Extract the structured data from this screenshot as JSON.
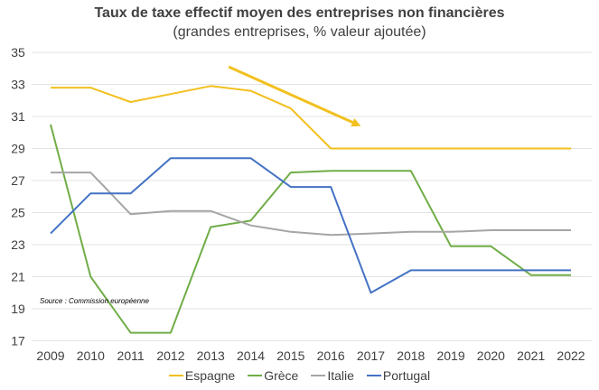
{
  "chart_data": {
    "type": "line",
    "title": "Taux de taxe effectif moyen des entreprises non financières",
    "subtitle": "(grandes entreprises, % valeur ajoutée)",
    "xlabel": "",
    "ylabel": "",
    "x": [
      "2009",
      "2010",
      "2011",
      "2012",
      "2013",
      "2014",
      "2015",
      "2016",
      "2017",
      "2018",
      "2019",
      "2020",
      "2021",
      "2022"
    ],
    "ylim": [
      17,
      35
    ],
    "yticks": [
      17,
      19,
      21,
      23,
      25,
      27,
      29,
      31,
      33,
      35
    ],
    "grid": true,
    "legend_position": "bottom",
    "series": [
      {
        "name": "Espagne",
        "color": "#F2C01E",
        "values": [
          32.8,
          32.8,
          31.9,
          32.4,
          32.9,
          32.6,
          31.5,
          29.0,
          29.0,
          29.0,
          29.0,
          29.0,
          29.0,
          29.0
        ]
      },
      {
        "name": "Grèce",
        "color": "#70AD47",
        "values": [
          30.5,
          21.0,
          17.5,
          17.5,
          24.1,
          24.5,
          27.5,
          27.6,
          27.6,
          27.6,
          22.9,
          22.9,
          21.1,
          21.1
        ]
      },
      {
        "name": "Italie",
        "color": "#A5A5A5",
        "values": [
          27.5,
          27.5,
          24.9,
          25.1,
          25.1,
          24.2,
          23.8,
          23.6,
          23.7,
          23.8,
          23.8,
          23.9,
          23.9,
          23.9
        ]
      },
      {
        "name": "Portugal",
        "color": "#4472C4",
        "values": [
          23.7,
          26.2,
          26.2,
          28.4,
          28.4,
          28.4,
          26.6,
          26.6,
          20.0,
          21.4,
          21.4,
          21.4,
          21.4,
          21.4
        ]
      }
    ],
    "annotations": [
      {
        "type": "arrow",
        "color": "#F2C01E",
        "from": {
          "x": 2013.45,
          "y": 34.1
        },
        "to": {
          "x": 2016.75,
          "y": 30.4
        },
        "description": "downward trend arrow for Espagne"
      },
      {
        "type": "text",
        "text": "Source : Commission européenne"
      }
    ]
  },
  "source_note": "Source : Commission européenne"
}
